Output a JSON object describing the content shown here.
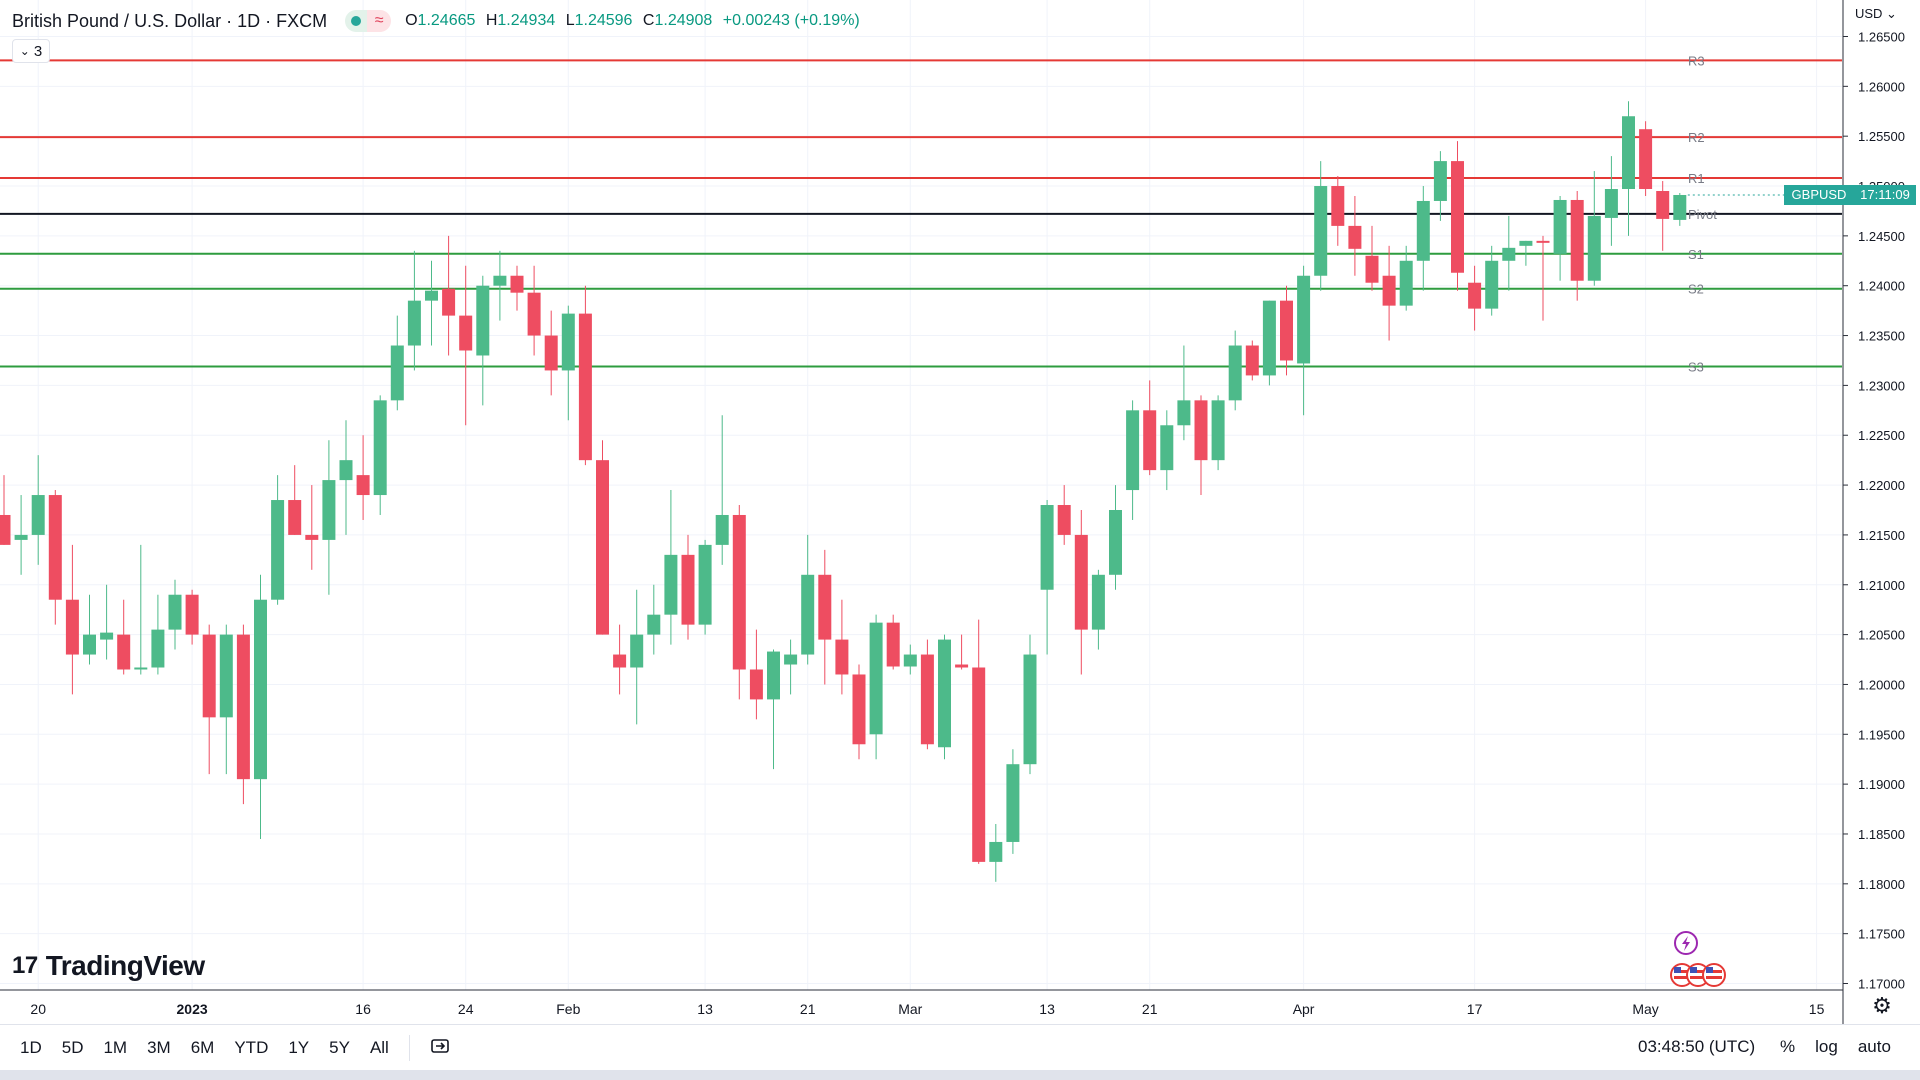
{
  "header": {
    "title": "British Pound / U.S. Dollar · 1D · FXCM",
    "wave_glyph": "≈",
    "ohlc": [
      {
        "k": "O",
        "v": "1.24665"
      },
      {
        "k": "H",
        "v": "1.24934"
      },
      {
        "k": "L",
        "v": "1.24596"
      },
      {
        "k": "C",
        "v": "1.24908"
      }
    ],
    "change": "+0.00243 (+0.19%)",
    "indicator_count": "3",
    "indicator_chevron": "⌄"
  },
  "brand": {
    "logo_text": "TradingView",
    "logo_mark": "17"
  },
  "axis": {
    "currency": "USD ⌄"
  },
  "price_tag": {
    "symbol": "GBPUSD",
    "countdown": "17:11:09"
  },
  "bottom_bar": {
    "ranges": [
      "1D",
      "5D",
      "1M",
      "3M",
      "6M",
      "YTD",
      "1Y",
      "5Y",
      "All"
    ],
    "compare_icon": "compare-icon",
    "clock": "03:48:50 (UTC)",
    "percent": "%",
    "log": "log",
    "auto": "auto"
  },
  "colors": {
    "up": "#4dba8a",
    "down": "#ee4d61",
    "resistance": "#e53935",
    "support": "#2e9c3f",
    "pivot": "#131722"
  },
  "chart_data": {
    "type": "candlestick",
    "symbol": "GBPUSD",
    "ylim": [
      1.1675,
      1.2665
    ],
    "yticks": [
      1.17,
      1.175,
      1.18,
      1.185,
      1.19,
      1.195,
      1.2,
      1.205,
      1.21,
      1.215,
      1.22,
      1.225,
      1.23,
      1.235,
      1.24,
      1.245,
      1.25,
      1.255,
      1.26,
      1.265
    ],
    "ytick_labels": [
      "1.17000",
      "1.17500",
      "1.18000",
      "1.18500",
      "1.19000",
      "1.19500",
      "1.20000",
      "1.20500",
      "1.21000",
      "1.21500",
      "1.22000",
      "1.22500",
      "1.23000",
      "1.23500",
      "1.24000",
      "1.24500",
      "1.25000",
      "1.25500",
      "1.26000",
      "1.26500"
    ],
    "xtick_labels": [
      {
        "label": "20",
        "index": 2
      },
      {
        "label": "2023",
        "index": 11
      },
      {
        "label": "16",
        "index": 21
      },
      {
        "label": "24",
        "index": 27
      },
      {
        "label": "Feb",
        "index": 33
      },
      {
        "label": "13",
        "index": 41
      },
      {
        "label": "21",
        "index": 47
      },
      {
        "label": "Mar",
        "index": 53
      },
      {
        "label": "13",
        "index": 61
      },
      {
        "label": "21",
        "index": 67
      },
      {
        "label": "Apr",
        "index": 76
      },
      {
        "label": "17",
        "index": 86
      },
      {
        "label": "May",
        "index": 96
      },
      {
        "label": "15",
        "index": 106
      }
    ],
    "candles": [
      {
        "o": 1.217,
        "h": 1.221,
        "l": 1.214,
        "c": 1.214
      },
      {
        "o": 1.2145,
        "h": 1.219,
        "l": 1.211,
        "c": 1.215
      },
      {
        "o": 1.215,
        "h": 1.223,
        "l": 1.212,
        "c": 1.219
      },
      {
        "o": 1.219,
        "h": 1.2195,
        "l": 1.206,
        "c": 1.2085
      },
      {
        "o": 1.2085,
        "h": 1.214,
        "l": 1.199,
        "c": 1.203
      },
      {
        "o": 1.203,
        "h": 1.209,
        "l": 1.202,
        "c": 1.205
      },
      {
        "o": 1.2045,
        "h": 1.21,
        "l": 1.2025,
        "c": 1.2052
      },
      {
        "o": 1.205,
        "h": 1.2085,
        "l": 1.201,
        "c": 1.2015
      },
      {
        "o": 1.2015,
        "h": 1.214,
        "l": 1.201,
        "c": 1.2017
      },
      {
        "o": 1.2017,
        "h": 1.209,
        "l": 1.201,
        "c": 1.2055
      },
      {
        "o": 1.2055,
        "h": 1.2105,
        "l": 1.2035,
        "c": 1.209
      },
      {
        "o": 1.209,
        "h": 1.2095,
        "l": 1.204,
        "c": 1.205
      },
      {
        "o": 1.205,
        "h": 1.206,
        "l": 1.191,
        "c": 1.1967
      },
      {
        "o": 1.1967,
        "h": 1.206,
        "l": 1.191,
        "c": 1.205
      },
      {
        "o": 1.205,
        "h": 1.206,
        "l": 1.188,
        "c": 1.1905
      },
      {
        "o": 1.1905,
        "h": 1.211,
        "l": 1.1845,
        "c": 1.2085
      },
      {
        "o": 1.2085,
        "h": 1.221,
        "l": 1.208,
        "c": 1.2185
      },
      {
        "o": 1.2185,
        "h": 1.222,
        "l": 1.215,
        "c": 1.215
      },
      {
        "o": 1.215,
        "h": 1.22,
        "l": 1.2115,
        "c": 1.2145
      },
      {
        "o": 1.2145,
        "h": 1.2245,
        "l": 1.209,
        "c": 1.2205
      },
      {
        "o": 1.2205,
        "h": 1.2265,
        "l": 1.215,
        "c": 1.2225
      },
      {
        "o": 1.221,
        "h": 1.225,
        "l": 1.2165,
        "c": 1.219
      },
      {
        "o": 1.219,
        "h": 1.229,
        "l": 1.217,
        "c": 1.2285
      },
      {
        "o": 1.2285,
        "h": 1.237,
        "l": 1.2275,
        "c": 1.234
      },
      {
        "o": 1.234,
        "h": 1.2435,
        "l": 1.2315,
        "c": 1.2385
      },
      {
        "o": 1.2385,
        "h": 1.2425,
        "l": 1.234,
        "c": 1.2395
      },
      {
        "o": 1.2397,
        "h": 1.245,
        "l": 1.233,
        "c": 1.237
      },
      {
        "o": 1.237,
        "h": 1.242,
        "l": 1.226,
        "c": 1.2335
      },
      {
        "o": 1.233,
        "h": 1.241,
        "l": 1.228,
        "c": 1.24
      },
      {
        "o": 1.24,
        "h": 1.2435,
        "l": 1.2365,
        "c": 1.241
      },
      {
        "o": 1.241,
        "h": 1.242,
        "l": 1.2375,
        "c": 1.2393
      },
      {
        "o": 1.2393,
        "h": 1.242,
        "l": 1.233,
        "c": 1.235
      },
      {
        "o": 1.235,
        "h": 1.2375,
        "l": 1.229,
        "c": 1.2315
      },
      {
        "o": 1.2315,
        "h": 1.238,
        "l": 1.2265,
        "c": 1.2372
      },
      {
        "o": 1.2372,
        "h": 1.24,
        "l": 1.222,
        "c": 1.2225
      },
      {
        "o": 1.2225,
        "h": 1.2245,
        "l": 1.205,
        "c": 1.205
      },
      {
        "o": 1.203,
        "h": 1.206,
        "l": 1.199,
        "c": 1.2017
      },
      {
        "o": 1.2017,
        "h": 1.2095,
        "l": 1.196,
        "c": 1.205
      },
      {
        "o": 1.205,
        "h": 1.21,
        "l": 1.203,
        "c": 1.207
      },
      {
        "o": 1.207,
        "h": 1.2195,
        "l": 1.204,
        "c": 1.213
      },
      {
        "o": 1.213,
        "h": 1.215,
        "l": 1.2045,
        "c": 1.206
      },
      {
        "o": 1.206,
        "h": 1.2145,
        "l": 1.205,
        "c": 1.214
      },
      {
        "o": 1.214,
        "h": 1.227,
        "l": 1.212,
        "c": 1.217
      },
      {
        "o": 1.217,
        "h": 1.218,
        "l": 1.1985,
        "c": 1.2015
      },
      {
        "o": 1.2015,
        "h": 1.2055,
        "l": 1.1965,
        "c": 1.1985
      },
      {
        "o": 1.1985,
        "h": 1.2035,
        "l": 1.1915,
        "c": 1.2033
      },
      {
        "o": 1.202,
        "h": 1.2045,
        "l": 1.199,
        "c": 1.203
      },
      {
        "o": 1.203,
        "h": 1.215,
        "l": 1.202,
        "c": 1.211
      },
      {
        "o": 1.211,
        "h": 1.2135,
        "l": 1.2,
        "c": 1.2045
      },
      {
        "o": 1.2045,
        "h": 1.2085,
        "l": 1.199,
        "c": 1.201
      },
      {
        "o": 1.201,
        "h": 1.202,
        "l": 1.1925,
        "c": 1.194
      },
      {
        "o": 1.195,
        "h": 1.207,
        "l": 1.1925,
        "c": 1.2062
      },
      {
        "o": 1.2062,
        "h": 1.207,
        "l": 1.2015,
        "c": 1.2018
      },
      {
        "o": 1.2018,
        "h": 1.204,
        "l": 1.201,
        "c": 1.203
      },
      {
        "o": 1.203,
        "h": 1.2045,
        "l": 1.1935,
        "c": 1.194
      },
      {
        "o": 1.1937,
        "h": 1.205,
        "l": 1.1925,
        "c": 1.2045
      },
      {
        "o": 1.202,
        "h": 1.205,
        "l": 1.2015,
        "c": 1.2017
      },
      {
        "o": 1.2017,
        "h": 1.2065,
        "l": 1.182,
        "c": 1.1822
      },
      {
        "o": 1.1822,
        "h": 1.186,
        "l": 1.1802,
        "c": 1.1842
      },
      {
        "o": 1.1842,
        "h": 1.1935,
        "l": 1.183,
        "c": 1.192
      },
      {
        "o": 1.192,
        "h": 1.205,
        "l": 1.191,
        "c": 1.203
      },
      {
        "o": 1.2095,
        "h": 1.2185,
        "l": 1.203,
        "c": 1.218
      },
      {
        "o": 1.218,
        "h": 1.22,
        "l": 1.214,
        "c": 1.215
      },
      {
        "o": 1.215,
        "h": 1.2175,
        "l": 1.201,
        "c": 1.2055
      },
      {
        "o": 1.2055,
        "h": 1.2115,
        "l": 1.2035,
        "c": 1.211
      },
      {
        "o": 1.211,
        "h": 1.22,
        "l": 1.2095,
        "c": 1.2175
      },
      {
        "o": 1.2195,
        "h": 1.2285,
        "l": 1.2165,
        "c": 1.2275
      },
      {
        "o": 1.2275,
        "h": 1.2305,
        "l": 1.221,
        "c": 1.2215
      },
      {
        "o": 1.2215,
        "h": 1.2275,
        "l": 1.2195,
        "c": 1.226
      },
      {
        "o": 1.226,
        "h": 1.234,
        "l": 1.2245,
        "c": 1.2285
      },
      {
        "o": 1.2285,
        "h": 1.229,
        "l": 1.219,
        "c": 1.2225
      },
      {
        "o": 1.2225,
        "h": 1.229,
        "l": 1.2215,
        "c": 1.2285
      },
      {
        "o": 1.2285,
        "h": 1.2355,
        "l": 1.2275,
        "c": 1.234
      },
      {
        "o": 1.234,
        "h": 1.2345,
        "l": 1.2305,
        "c": 1.231
      },
      {
        "o": 1.231,
        "h": 1.2385,
        "l": 1.23,
        "c": 1.2385
      },
      {
        "o": 1.2385,
        "h": 1.24,
        "l": 1.231,
        "c": 1.2325
      },
      {
        "o": 1.2322,
        "h": 1.242,
        "l": 1.227,
        "c": 1.241
      },
      {
        "o": 1.241,
        "h": 1.2525,
        "l": 1.2395,
        "c": 1.25
      },
      {
        "o": 1.25,
        "h": 1.251,
        "l": 1.244,
        "c": 1.246
      },
      {
        "o": 1.246,
        "h": 1.249,
        "l": 1.241,
        "c": 1.2437
      },
      {
        "o": 1.243,
        "h": 1.246,
        "l": 1.2395,
        "c": 1.2403
      },
      {
        "o": 1.241,
        "h": 1.244,
        "l": 1.2345,
        "c": 1.238
      },
      {
        "o": 1.238,
        "h": 1.244,
        "l": 1.2375,
        "c": 1.2425
      },
      {
        "o": 1.2425,
        "h": 1.25,
        "l": 1.2395,
        "c": 1.2485
      },
      {
        "o": 1.2485,
        "h": 1.2535,
        "l": 1.2465,
        "c": 1.2525
      },
      {
        "o": 1.2525,
        "h": 1.2545,
        "l": 1.2395,
        "c": 1.2413
      },
      {
        "o": 1.2403,
        "h": 1.242,
        "l": 1.2355,
        "c": 1.2377
      },
      {
        "o": 1.2377,
        "h": 1.244,
        "l": 1.237,
        "c": 1.2425
      },
      {
        "o": 1.2425,
        "h": 1.247,
        "l": 1.2395,
        "c": 1.2438
      },
      {
        "o": 1.244,
        "h": 1.2445,
        "l": 1.242,
        "c": 1.2445
      },
      {
        "o": 1.2445,
        "h": 1.245,
        "l": 1.2365,
        "c": 1.2443
      },
      {
        "o": 1.2432,
        "h": 1.249,
        "l": 1.2405,
        "c": 1.2486
      },
      {
        "o": 1.2486,
        "h": 1.2495,
        "l": 1.2385,
        "c": 1.2405
      },
      {
        "o": 1.2405,
        "h": 1.2515,
        "l": 1.24,
        "c": 1.247
      },
      {
        "o": 1.2468,
        "h": 1.253,
        "l": 1.244,
        "c": 1.2497
      },
      {
        "o": 1.2497,
        "h": 1.2585,
        "l": 1.245,
        "c": 1.257
      },
      {
        "o": 1.2557,
        "h": 1.2565,
        "l": 1.249,
        "c": 1.2497
      },
      {
        "o": 1.2495,
        "h": 1.2505,
        "l": 1.2435,
        "c": 1.2467
      },
      {
        "o": 1.2466,
        "h": 1.2493,
        "l": 1.246,
        "c": 1.2491
      }
    ],
    "levels": [
      {
        "label": "R3",
        "value": 1.2626,
        "kind": "resistance"
      },
      {
        "label": "R2",
        "value": 1.2549,
        "kind": "resistance"
      },
      {
        "label": "R1",
        "value": 1.2508,
        "kind": "resistance"
      },
      {
        "label": "Pivot",
        "value": 1.2472,
        "kind": "pivot"
      },
      {
        "label": "S1",
        "value": 1.2432,
        "kind": "support"
      },
      {
        "label": "S2",
        "value": 1.2397,
        "kind": "support"
      },
      {
        "label": "S3",
        "value": 1.2319,
        "kind": "support"
      }
    ],
    "last_price": 1.2491,
    "grid": true
  }
}
